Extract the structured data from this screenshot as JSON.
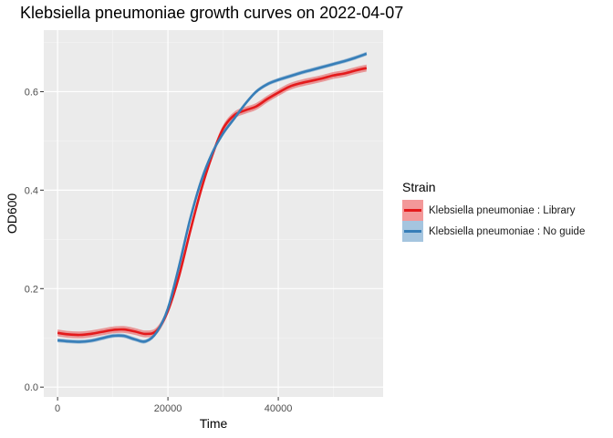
{
  "chart_data": {
    "type": "line",
    "title": "Klebsiella pneumoniae growth curves on 2022-04-07",
    "xlabel": "Time",
    "ylabel": "OD600",
    "xlim": [
      -2500,
      59000
    ],
    "ylim": [
      -0.02,
      0.725
    ],
    "x_ticks": [
      0,
      20000,
      40000
    ],
    "x_tick_labels": [
      "0",
      "20000",
      "40000"
    ],
    "y_ticks": [
      0.0,
      0.2,
      0.4,
      0.6
    ],
    "y_tick_labels": [
      "0.0",
      "0.2",
      "0.4",
      "0.6"
    ],
    "grid": true,
    "legend": {
      "title": "Strain",
      "position": "right"
    },
    "series": [
      {
        "name": "Klebsiella pneumoniae : Library",
        "color": "#e41a1c",
        "x": [
          0,
          2000,
          4000,
          6000,
          8000,
          10000,
          12000,
          14000,
          16000,
          18000,
          20000,
          22000,
          24000,
          26000,
          28000,
          30000,
          32000,
          34000,
          36000,
          38000,
          40000,
          42000,
          44000,
          46000,
          48000,
          50000,
          52000,
          54000,
          56000
        ],
        "values": [
          0.11,
          0.107,
          0.106,
          0.108,
          0.112,
          0.116,
          0.117,
          0.113,
          0.108,
          0.115,
          0.155,
          0.225,
          0.315,
          0.4,
          0.47,
          0.525,
          0.552,
          0.562,
          0.57,
          0.585,
          0.598,
          0.61,
          0.617,
          0.622,
          0.627,
          0.633,
          0.637,
          0.643,
          0.648
        ],
        "band_halfwidth": 0.007
      },
      {
        "name": "Klebsiella pneumoniae : No guide",
        "color": "#377eb8",
        "x": [
          0,
          2000,
          4000,
          6000,
          8000,
          10000,
          12000,
          14000,
          16000,
          18000,
          20000,
          22000,
          24000,
          26000,
          28000,
          30000,
          32000,
          34000,
          36000,
          38000,
          40000,
          42000,
          44000,
          46000,
          48000,
          50000,
          52000,
          54000,
          56000
        ],
        "values": [
          0.095,
          0.093,
          0.092,
          0.094,
          0.099,
          0.104,
          0.104,
          0.097,
          0.093,
          0.112,
          0.16,
          0.245,
          0.34,
          0.418,
          0.475,
          0.515,
          0.545,
          0.575,
          0.6,
          0.615,
          0.624,
          0.631,
          0.638,
          0.644,
          0.65,
          0.656,
          0.662,
          0.669,
          0.677
        ],
        "band_halfwidth": 0.004
      }
    ]
  }
}
